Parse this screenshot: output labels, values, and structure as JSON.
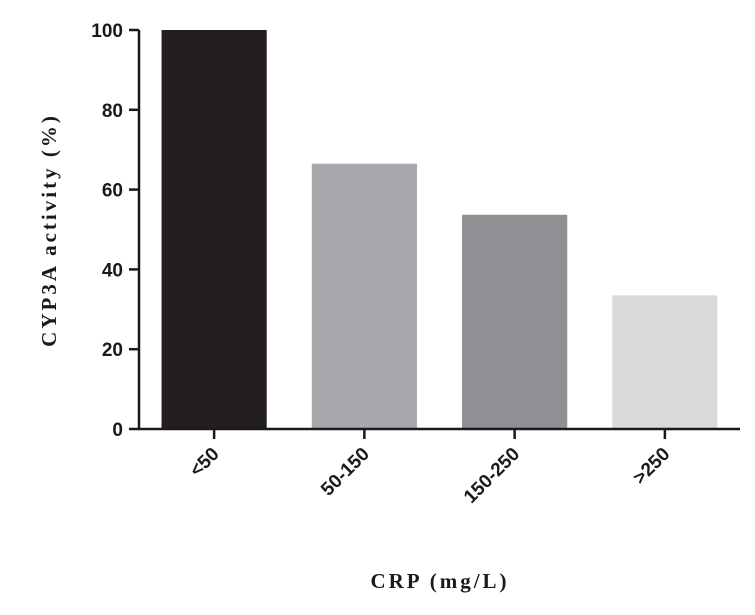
{
  "chart_data": {
    "type": "bar",
    "categories": [
      "<50",
      "50-150",
      "150-250",
      ">250"
    ],
    "values": [
      100,
      66.5,
      53.7,
      33.5
    ],
    "bar_colors": [
      "#231f20",
      "#a8a9ac",
      "#8f9093",
      "#d9dadb"
    ],
    "xlabel": "CRP (mg/L)",
    "ylabel": "CYP3A activity (%)",
    "ylim": [
      0,
      100
    ],
    "yticks": [
      0,
      20,
      40,
      60,
      80,
      100
    ],
    "grid": false,
    "legend": "none"
  }
}
